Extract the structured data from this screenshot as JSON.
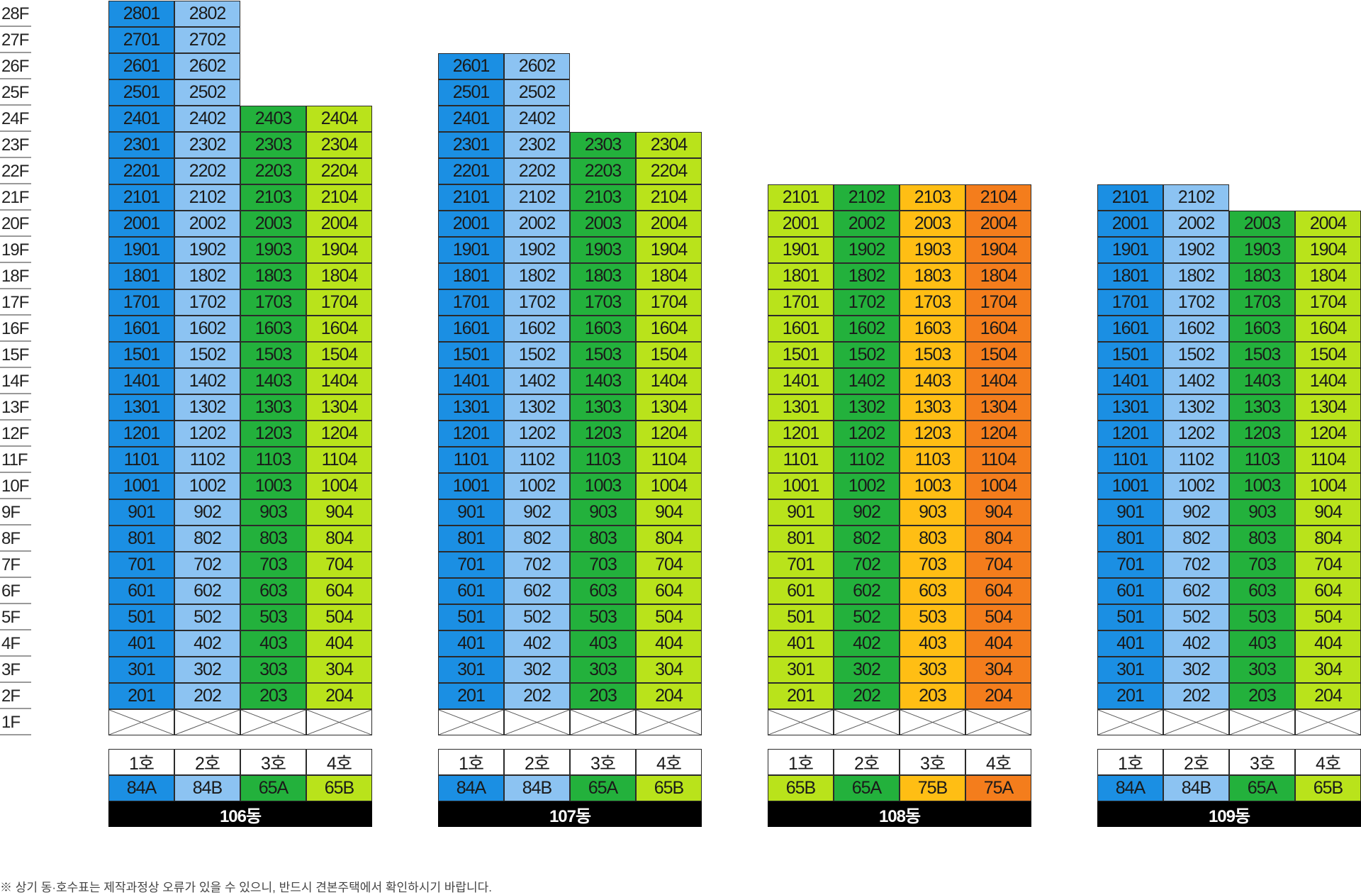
{
  "floors": [
    "28F",
    "27F",
    "26F",
    "25F",
    "24F",
    "23F",
    "22F",
    "21F",
    "20F",
    "19F",
    "18F",
    "17F",
    "16F",
    "15F",
    "14F",
    "13F",
    "12F",
    "11F",
    "10F",
    "9F",
    "8F",
    "7F",
    "6F",
    "5F",
    "4F",
    "3F",
    "2F",
    "1F"
  ],
  "colors": {
    "blue": "#1b8fe3",
    "light_blue": "#8cc3f2",
    "green": "#23b13c",
    "yellow_green": "#b9e31b",
    "yellow": "#ffbe14",
    "orange": "#f47d1c",
    "pilotis_line": "#555555"
  },
  "buildings": [
    {
      "name": "106동",
      "units": [
        {
          "label": "1호",
          "type": "84A",
          "color": "blue",
          "top_floor": 28
        },
        {
          "label": "2호",
          "type": "84B",
          "color": "light_blue",
          "top_floor": 28
        },
        {
          "label": "3호",
          "type": "65A",
          "color": "green",
          "top_floor": 24
        },
        {
          "label": "4호",
          "type": "65B",
          "color": "yellow_green",
          "top_floor": 24
        }
      ]
    },
    {
      "name": "107동",
      "units": [
        {
          "label": "1호",
          "type": "84A",
          "color": "blue",
          "top_floor": 26
        },
        {
          "label": "2호",
          "type": "84B",
          "color": "light_blue",
          "top_floor": 26
        },
        {
          "label": "3호",
          "type": "65A",
          "color": "green",
          "top_floor": 23
        },
        {
          "label": "4호",
          "type": "65B",
          "color": "yellow_green",
          "top_floor": 23
        }
      ]
    },
    {
      "name": "108동",
      "units": [
        {
          "label": "1호",
          "type": "65B",
          "color": "yellow_green",
          "top_floor": 21
        },
        {
          "label": "2호",
          "type": "65A",
          "color": "green",
          "top_floor": 21
        },
        {
          "label": "3호",
          "type": "75B",
          "color": "yellow",
          "top_floor": 21
        },
        {
          "label": "4호",
          "type": "75A",
          "color": "orange",
          "top_floor": 21
        }
      ]
    },
    {
      "name": "109동",
      "units": [
        {
          "label": "1호",
          "type": "84A",
          "color": "blue",
          "top_floor": 21
        },
        {
          "label": "2호",
          "type": "84B",
          "color": "light_blue",
          "top_floor": 21
        },
        {
          "label": "3호",
          "type": "65A",
          "color": "green",
          "top_floor": 20
        },
        {
          "label": "4호",
          "type": "65B",
          "color": "yellow_green",
          "top_floor": 20
        }
      ]
    }
  ],
  "footnote": "※ 상기 동·호수표는 제작과정상 오류가 있을 수 있으니, 반드시 견본주택에서 확인하시기 바랍니다."
}
